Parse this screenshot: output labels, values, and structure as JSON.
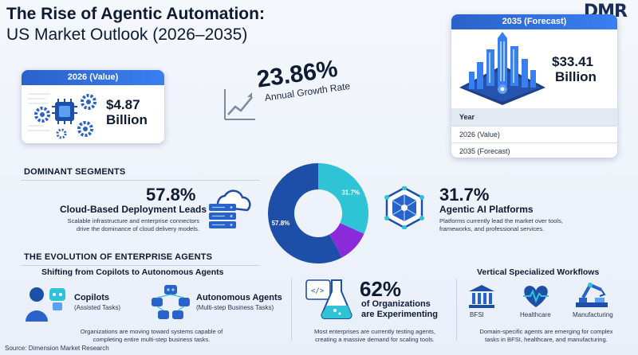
{
  "header": {
    "title_line1": "The Rise of Agentic Automation:",
    "title_line2": "US Market Outlook (2026–2035)",
    "logo": "DMR"
  },
  "value_2026": {
    "label": "2026 (Value)",
    "amount": "$4.87",
    "unit": "Billion"
  },
  "growth": {
    "rate": "23.86%",
    "label": "Annual Growth Rate"
  },
  "forecast_2035": {
    "label": "2035 (Forecast)",
    "amount": "$33.41",
    "unit": "Billion",
    "table_header": "Year",
    "rows": [
      "2026 (Value)",
      "2035 (Forecast)"
    ]
  },
  "segments": {
    "heading": "DOMINANT SEGMENTS",
    "left": {
      "pct": "57.8%",
      "title": "Cloud-Based Deployment Leads",
      "desc_line1": "Scalable infrastructure and enterprise connectors",
      "desc_line2": "drive the dominance of cloud delivery models."
    },
    "right": {
      "pct": "31.7%",
      "title": "Agentic AI Platforms",
      "desc_line1": "Platforms currently lead the market over tools,",
      "desc_line2": "frameworks, and professional services."
    },
    "donut_label_left": "57.8%",
    "donut_label_right": "31.7%"
  },
  "chart_data": {
    "type": "pie",
    "values": [
      57.8,
      31.7,
      10.5
    ],
    "colors": [
      "#1d4fa8",
      "#2ec4d6",
      "#8a2bd9"
    ],
    "labels": [
      "57.8%",
      "31.7%",
      ""
    ]
  },
  "evolution": {
    "heading": "THE EVOLUTION OF ENTERPRISE AGENTS",
    "shift": {
      "title": "Shifting from Copilots to Autonomous Agents",
      "copilots": "Copilots",
      "copilots_sub": "(Assisted Tasks)",
      "agents": "Autonomous Agents",
      "agents_sub": "(Multi-step Business Tasks)",
      "desc_line1": "Organizations are moving toward systems capable of",
      "desc_line2": "completing entire multi-step business tasks."
    },
    "experimenting": {
      "pct": "62%",
      "line1": "of Organizations",
      "line2": "are Experimenting",
      "desc_line1": "Most enterprises are currently testing agents,",
      "desc_line2": "creating a massive demand for scaling tools."
    },
    "vertical": {
      "title": "Vertical Specialized Workflows",
      "items": [
        "BFSI",
        "Healthcare",
        "Manufacturing"
      ],
      "desc_line1": "Domain-specific agents are emerging for complex",
      "desc_line2": "tasks in BFSI, healthcare, and manufacturing."
    }
  },
  "footer": {
    "source": "Source: Dimension Market Research"
  },
  "colors": {
    "accent_blue": "#2a62c9",
    "teal": "#2ec4d6",
    "purple": "#8a2bd9",
    "navy": "#1d4fa8"
  }
}
